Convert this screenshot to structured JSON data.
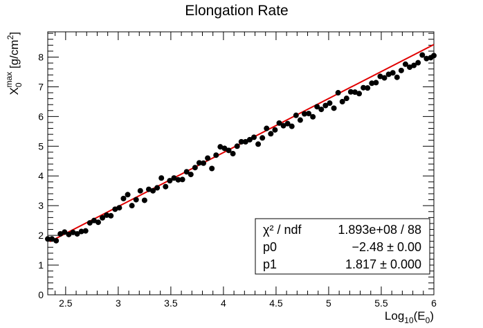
{
  "chart_data": {
    "type": "scatter",
    "title": "Elongation Rate",
    "xlabel": {
      "base": "Log",
      "sub": "10",
      "mid": "(E",
      "sub2": "0",
      "end": ")"
    },
    "ylabel": {
      "base": "X",
      "sub": "0",
      "sup": "max",
      "unit": " [g/cm",
      "unit_sup": "2",
      "unit_end": "]"
    },
    "xlim": [
      2.33,
      6.0
    ],
    "ylim": [
      0,
      8.85
    ],
    "x_ticks": [
      "2.5",
      "3",
      "3.5",
      "4",
      "4.5",
      "5",
      "5.5",
      "6"
    ],
    "x_tick_values": [
      2.5,
      3.0,
      3.5,
      4.0,
      4.5,
      5.0,
      5.5,
      6.0
    ],
    "y_ticks": [
      "0",
      "1",
      "2",
      "3",
      "4",
      "5",
      "6",
      "7",
      "8"
    ],
    "y_tick_values": [
      0,
      1,
      2,
      3,
      4,
      5,
      6,
      7,
      8
    ],
    "grid": false,
    "series": [
      {
        "marker_color": "#000000",
        "x": [
          2.33,
          2.37,
          2.41,
          2.45,
          2.49,
          2.53,
          2.57,
          2.61,
          2.65,
          2.69,
          2.73,
          2.77,
          2.81,
          2.85,
          2.89,
          2.93,
          2.97,
          3.01,
          3.05,
          3.09,
          3.13,
          3.17,
          3.21,
          3.25,
          3.29,
          3.33,
          3.37,
          3.41,
          3.45,
          3.49,
          3.53,
          3.57,
          3.61,
          3.65,
          3.69,
          3.73,
          3.77,
          3.81,
          3.85,
          3.89,
          3.93,
          3.97,
          4.01,
          4.05,
          4.09,
          4.13,
          4.17,
          4.21,
          4.25,
          4.29,
          4.33,
          4.37,
          4.41,
          4.45,
          4.49,
          4.53,
          4.57,
          4.61,
          4.65,
          4.69,
          4.73,
          4.77,
          4.81,
          4.85,
          4.89,
          4.93,
          4.97,
          5.01,
          5.05,
          5.09,
          5.13,
          5.17,
          5.21,
          5.25,
          5.29,
          5.33,
          5.37,
          5.41,
          5.45,
          5.49,
          5.53,
          5.57,
          5.61,
          5.65,
          5.69,
          5.73,
          5.77,
          5.81,
          5.85,
          5.89,
          5.93,
          5.97,
          6.0
        ],
        "y": [
          1.88,
          1.88,
          1.82,
          2.05,
          2.11,
          2.03,
          2.1,
          2.05,
          2.13,
          2.15,
          2.42,
          2.5,
          2.44,
          2.59,
          2.68,
          2.66,
          2.88,
          2.93,
          3.24,
          3.37,
          3.0,
          3.2,
          3.5,
          3.18,
          3.55,
          3.5,
          3.6,
          3.93,
          3.64,
          3.84,
          3.93,
          3.87,
          3.88,
          4.14,
          4.05,
          4.28,
          4.44,
          4.43,
          4.6,
          4.25,
          4.7,
          4.98,
          4.93,
          4.86,
          4.75,
          5.0,
          5.15,
          5.15,
          5.22,
          5.3,
          5.07,
          5.28,
          5.6,
          5.42,
          5.55,
          5.78,
          5.69,
          5.76,
          5.67,
          6.04,
          5.88,
          6.09,
          6.1,
          5.99,
          6.33,
          6.24,
          6.37,
          6.45,
          6.28,
          6.8,
          6.5,
          6.61,
          6.83,
          6.82,
          6.77,
          6.97,
          6.96,
          7.12,
          7.14,
          7.35,
          7.3,
          7.42,
          7.47,
          7.32,
          7.55,
          7.76,
          7.66,
          7.72,
          7.81,
          8.07,
          7.95,
          7.98,
          8.05
        ]
      }
    ],
    "fit": {
      "color": "#e00000",
      "p0": -2.48,
      "p1": 1.817,
      "x_range": [
        2.35,
        6.0
      ]
    },
    "stats": {
      "rows": [
        {
          "label": "χ² / ndf",
          "value": "1.893e+08 / 88"
        },
        {
          "label": "p0",
          "value": "−2.48 ± 0.00"
        },
        {
          "label": "p1",
          "value": "1.817 ± 0.000"
        }
      ]
    }
  }
}
